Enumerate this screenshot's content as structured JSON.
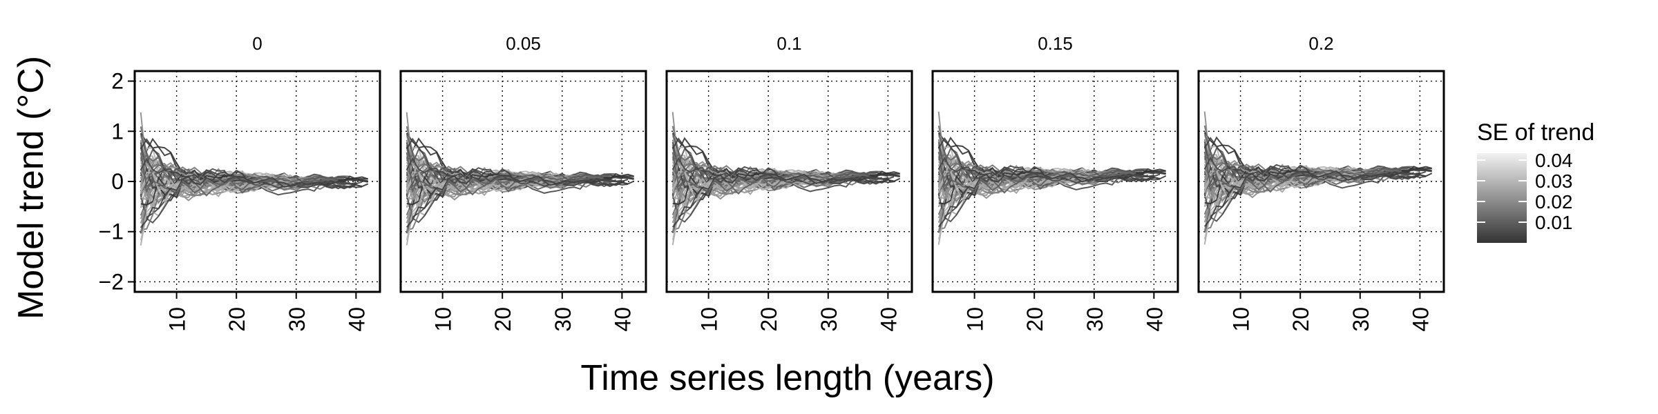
{
  "chart_data": {
    "type": "line",
    "title": "",
    "xlabel": "Time series length (years)",
    "ylabel": "Model trend (°C)",
    "xlim": [
      3,
      44
    ],
    "ylim": [
      -2.2,
      2.2
    ],
    "x_ticks": [
      10,
      20,
      30,
      40
    ],
    "x_tick_labels": [
      "10",
      "20",
      "30",
      "40"
    ],
    "y_ticks": [
      -2,
      -1,
      0,
      1,
      2
    ],
    "y_tick_labels": [
      "−2",
      "−1",
      "0",
      "1",
      "2"
    ],
    "grid": "dotted",
    "panels": [
      {
        "label": "0",
        "offset": 0.0
      },
      {
        "label": "0.05",
        "offset": 0.05
      },
      {
        "label": "0.1",
        "offset": 0.1
      },
      {
        "label": "0.15",
        "offset": 0.15
      },
      {
        "label": "0.2",
        "offset": 0.2
      }
    ],
    "series_count": 60,
    "x_start": 4,
    "x_end_range": [
      28,
      42
    ],
    "color_encoding": "SE of trend (grayscale)",
    "legend": {
      "title": "SE of trend",
      "position": "right",
      "ticks": [
        "0.04",
        "0.03",
        "0.02",
        "0.01"
      ],
      "color_light": "#f2f2f2",
      "color_dark": "#333333"
    }
  }
}
